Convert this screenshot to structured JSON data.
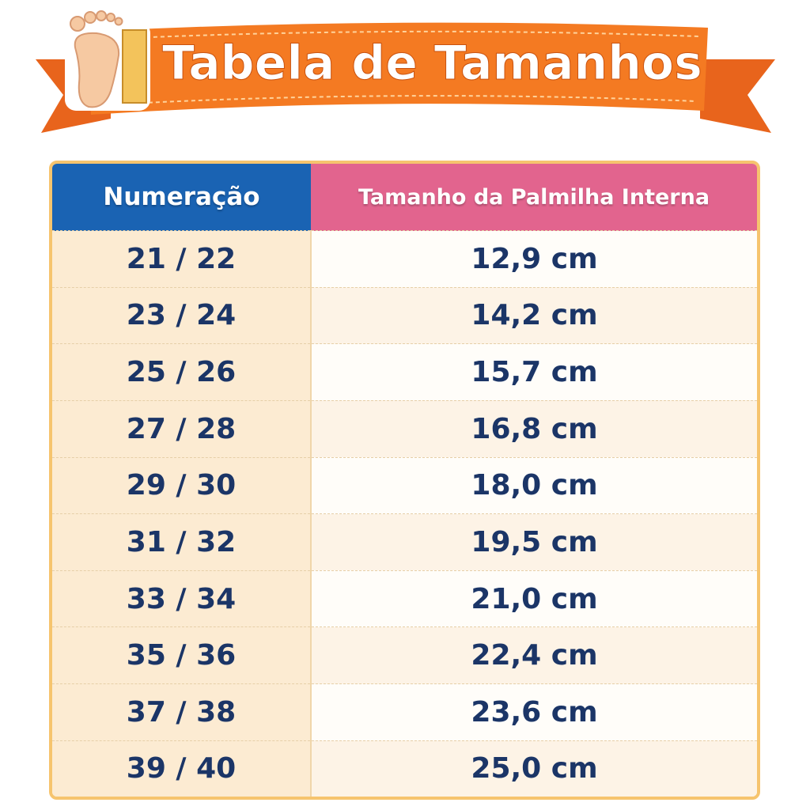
{
  "header": {
    "title": "Tabela de Tamanhos"
  },
  "table": {
    "columns": [
      "Numeração",
      "Tamanho da Palmilha Interna"
    ],
    "rows": [
      [
        "21 / 22",
        "12,9 cm"
      ],
      [
        "23 / 24",
        "14,2 cm"
      ],
      [
        "25 / 26",
        "15,7 cm"
      ],
      [
        "27 / 28",
        "16,8 cm"
      ],
      [
        "29 / 30",
        "18,0 cm"
      ],
      [
        "31 / 32",
        "19,5 cm"
      ],
      [
        "33 / 34",
        "21,0 cm"
      ],
      [
        "35 / 36",
        "22,4 cm"
      ],
      [
        "37 / 38",
        "23,6 cm"
      ],
      [
        "39 / 40",
        "25,0 cm"
      ]
    ]
  }
}
